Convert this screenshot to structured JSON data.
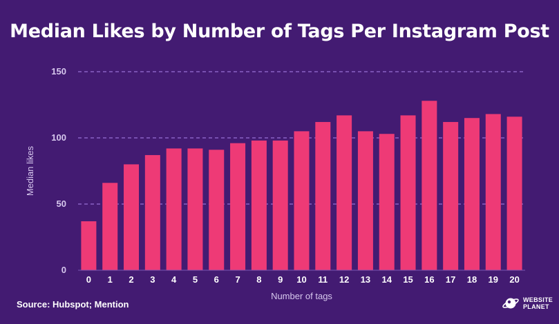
{
  "colors": {
    "background": "#431b72",
    "bar": "#ee3a76",
    "grid": "#8a62c4",
    "text": "#ffffff",
    "axis_text": "#d7c8ee"
  },
  "source": "Source: Hubspot; Mention",
  "logo": {
    "line1": "WEBSITE",
    "line2": "PLANET",
    "icon": "planet-icon"
  },
  "chart_data": {
    "type": "bar",
    "title": "Median Likes by Number of Tags Per Instagram Post",
    "xlabel": "Number of tags",
    "ylabel": "Median likes",
    "ylim": [
      0,
      150
    ],
    "yticks": [
      0,
      50,
      100,
      150
    ],
    "grid": true,
    "categories": [
      "0",
      "1",
      "2",
      "3",
      "4",
      "5",
      "6",
      "7",
      "8",
      "9",
      "10",
      "11",
      "12",
      "13",
      "14",
      "15",
      "16",
      "17",
      "18",
      "19",
      "20"
    ],
    "values": [
      37,
      66,
      80,
      87,
      92,
      92,
      91,
      96,
      98,
      98,
      105,
      112,
      117,
      105,
      103,
      117,
      128,
      112,
      115,
      118,
      116
    ]
  }
}
